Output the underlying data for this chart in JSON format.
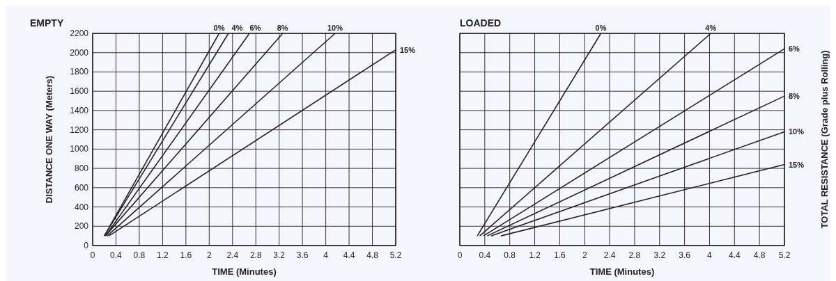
{
  "chart_data": [
    {
      "type": "line",
      "title": "EMPTY",
      "xlabel": "TIME (Minutes)",
      "ylabel": "DISTANCE ONE WAY (Meters)",
      "xlim": [
        0,
        5.2
      ],
      "ylim": [
        0,
        2200
      ],
      "xticks": [
        0,
        0.4,
        0.8,
        1.2,
        1.6,
        2,
        2.4,
        2.8,
        3.2,
        3.6,
        4,
        4.4,
        4.8,
        5.2
      ],
      "yticks": [
        0,
        200,
        400,
        600,
        800,
        1000,
        1200,
        1400,
        1600,
        1800,
        2000,
        2200
      ],
      "grid": true,
      "marker": "none",
      "line_style": "solid",
      "series": [
        {
          "name": "0%",
          "color": "#222222",
          "x": [
            0.2,
            2.17
          ],
          "values": [
            100,
            2200
          ]
        },
        {
          "name": "4%",
          "color": "#222222",
          "x": [
            0.2,
            2.33
          ],
          "values": [
            100,
            2200
          ]
        },
        {
          "name": "6%",
          "color": "#222222",
          "x": [
            0.22,
            2.69
          ],
          "values": [
            100,
            2200
          ]
        },
        {
          "name": "8%",
          "color": "#222222",
          "x": [
            0.22,
            3.26
          ],
          "values": [
            100,
            2200
          ]
        },
        {
          "name": "10%",
          "color": "#222222",
          "x": [
            0.25,
            4.16
          ],
          "values": [
            100,
            2200
          ]
        },
        {
          "name": "15%",
          "color": "#222222",
          "x": [
            0.28,
            5.2
          ],
          "values": [
            100,
            2030
          ]
        }
      ]
    },
    {
      "type": "line",
      "title": "LOADED",
      "xlabel": "TIME (Minutes)",
      "legend_title": "TOTAL RESISTANCE (Grade plus Rolling)",
      "xlim": [
        0,
        5.2
      ],
      "ylim": [
        0,
        2200
      ],
      "xticks": [
        0,
        0.4,
        0.8,
        1.2,
        1.6,
        2,
        2.4,
        2.8,
        3.2,
        3.6,
        4,
        4.4,
        4.8,
        5.2
      ],
      "yticks": [
        0,
        200,
        400,
        600,
        800,
        1000,
        1200,
        1400,
        1600,
        1800,
        2000,
        2200
      ],
      "tick_labels": "x",
      "grid": true,
      "marker": "none",
      "line_style": "solid",
      "series": [
        {
          "name": "0%",
          "color": "#222222",
          "x": [
            0.28,
            2.26
          ],
          "values": [
            100,
            2200
          ]
        },
        {
          "name": "4%",
          "color": "#222222",
          "x": [
            0.32,
            4.02
          ],
          "values": [
            100,
            2200
          ]
        },
        {
          "name": "6%",
          "color": "#222222",
          "x": [
            0.38,
            5.2
          ],
          "values": [
            100,
            2040
          ]
        },
        {
          "name": "8%",
          "color": "#222222",
          "x": [
            0.44,
            5.2
          ],
          "values": [
            100,
            1550
          ]
        },
        {
          "name": "10%",
          "color": "#222222",
          "x": [
            0.5,
            5.2
          ],
          "values": [
            100,
            1180
          ]
        },
        {
          "name": "15%",
          "color": "#222222",
          "x": [
            0.66,
            5.2
          ],
          "values": [
            100,
            840
          ]
        }
      ]
    }
  ]
}
